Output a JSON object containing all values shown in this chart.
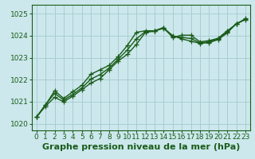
{
  "xlabel": "Graphe pression niveau de la mer (hPa)",
  "background_color": "#cce8ec",
  "plot_bg_color": "#cce8ec",
  "bottom_bar_color": "#2d6e2d",
  "grid_color": "#a8cdd2",
  "line_color": "#1a5c1a",
  "text_color": "#1a5c1a",
  "bottom_text_color": "#99ddbb",
  "xlim": [
    -0.5,
    23.5
  ],
  "ylim": [
    1019.7,
    1025.4
  ],
  "yticks": [
    1020,
    1021,
    1022,
    1023,
    1024,
    1025
  ],
  "xticks": [
    0,
    1,
    2,
    3,
    4,
    5,
    6,
    7,
    8,
    9,
    10,
    11,
    12,
    13,
    14,
    15,
    16,
    17,
    18,
    19,
    20,
    21,
    22,
    23
  ],
  "series1": [
    1020.3,
    1020.8,
    1021.2,
    1021.0,
    1021.25,
    1021.55,
    1021.85,
    1022.05,
    1022.45,
    1022.85,
    1023.15,
    1023.6,
    1024.15,
    1024.2,
    1024.35,
    1024.0,
    1023.85,
    1023.75,
    1023.65,
    1023.68,
    1023.82,
    1024.12,
    1024.55,
    1024.72
  ],
  "series2": [
    1020.3,
    1020.85,
    1021.5,
    1021.15,
    1021.45,
    1021.75,
    1022.25,
    1022.45,
    1022.65,
    1023.05,
    1023.55,
    1024.15,
    1024.22,
    1024.22,
    1024.37,
    1023.92,
    1024.02,
    1024.02,
    1023.72,
    1023.77,
    1023.88,
    1024.22,
    1024.52,
    1024.77
  ],
  "series3": [
    1020.3,
    1020.87,
    1021.38,
    1021.08,
    1021.33,
    1021.63,
    1022.03,
    1022.23,
    1022.53,
    1022.93,
    1023.35,
    1023.85,
    1024.19,
    1024.22,
    1024.33,
    1023.96,
    1023.92,
    1023.87,
    1023.67,
    1023.72,
    1023.85,
    1024.17,
    1024.53,
    1024.74
  ],
  "marker": "+",
  "markersize": 4,
  "linewidth": 1.0,
  "xlabel_fontsize": 8,
  "tick_fontsize": 6.5,
  "ytick_fontsize": 6.5
}
